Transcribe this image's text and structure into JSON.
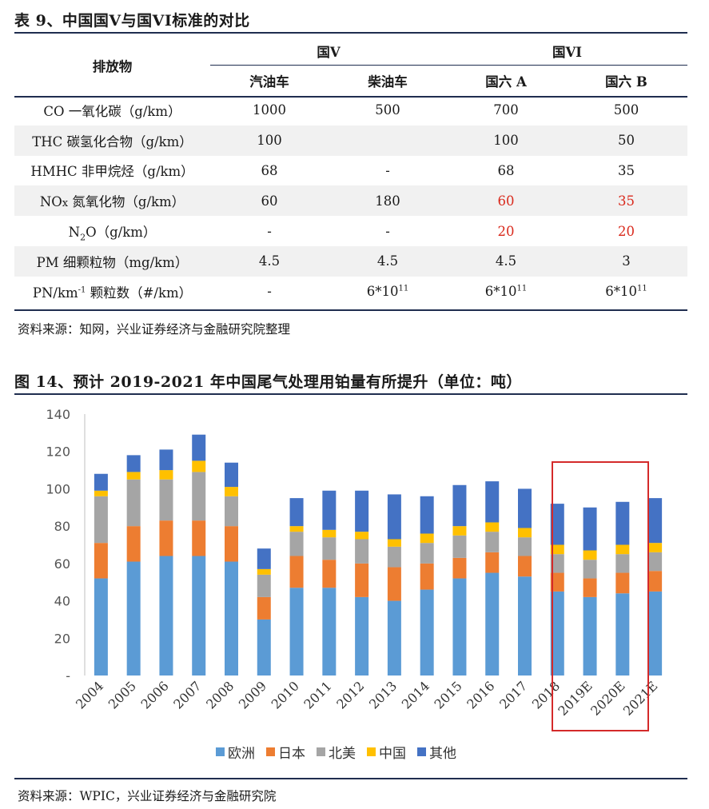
{
  "table": {
    "title": "表 9、中国国V与国VI标准的对比",
    "header_pollutant": "排放物",
    "group_5": "国V",
    "group_6": "国VI",
    "col_gas": "汽油车",
    "col_diesel": "柴油车",
    "col_6a": "国六 A",
    "col_6b": "国六 B",
    "rows": [
      {
        "label": "CO 一氧化碳（g/km）",
        "gas": "1000",
        "diesel": "500",
        "a": "700",
        "b": "500"
      },
      {
        "label": "THC 碳氢化合物（g/km）",
        "gas": "100",
        "diesel": "",
        "a": "100",
        "b": "50"
      },
      {
        "label": "HMHC 非甲烷烃（g/km）",
        "gas": "68",
        "diesel": "-",
        "a": "68",
        "b": "35"
      },
      {
        "label_pre": "NO",
        "label_x": "x",
        "label_post": " 氮氧化物（g/km）",
        "gas": "60",
        "diesel": "180",
        "a": "60",
        "b": "35"
      },
      {
        "label_pre": "N",
        "label_sub": "2",
        "label_post": "O（g/km）",
        "gas": "-",
        "diesel": "-",
        "a": "20",
        "b": "20"
      },
      {
        "label": "PM 细颗粒物（mg/km）",
        "gas": "4.5",
        "diesel": "4.5",
        "a": "4.5",
        "b": "3"
      },
      {
        "label_pre": "PN/km",
        "label_sup": "-1",
        "label_post": " 颗粒数（#/km）",
        "gas": "-",
        "diesel_base": "6*10",
        "diesel_exp": "11",
        "a_base": "6*10",
        "a_exp": "11",
        "b_base": "6*10",
        "b_exp": "11"
      }
    ],
    "source": "资料来源：知网，兴业证券经济与金融研究院整理"
  },
  "figure": {
    "title": "图 14、预计 2019-2021 年中国尾气处理用铂量有所提升（单位：吨）",
    "source": "资料来源：WPIC，兴业证券经济与金融研究院"
  },
  "colors": {
    "europe": "#5b9bd5",
    "japan": "#ed7d31",
    "north_america": "#a5a5a5",
    "china": "#ffc000",
    "other": "#4472c4",
    "highlight_box": "#d42a2a",
    "red_text": "#d9291c"
  },
  "chart_data": {
    "type": "bar",
    "stacked": true,
    "categories": [
      "2004",
      "2005",
      "2006",
      "2007",
      "2008",
      "2009",
      "2010",
      "2011",
      "2012",
      "2013",
      "2014",
      "2015",
      "2016",
      "2017",
      "2018",
      "2019E",
      "2020E",
      "2021E"
    ],
    "series": [
      {
        "name": "欧洲",
        "color": "#5b9bd5",
        "values": [
          52,
          61,
          64,
          64,
          61,
          30,
          47,
          47,
          42,
          40,
          46,
          52,
          55,
          53,
          45,
          42,
          44,
          45
        ]
      },
      {
        "name": "日本",
        "color": "#ed7d31",
        "values": [
          19,
          19,
          19,
          19,
          19,
          12,
          17,
          15,
          18,
          18,
          14,
          11,
          11,
          11,
          10,
          10,
          11,
          11
        ]
      },
      {
        "name": "北美",
        "color": "#a5a5a5",
        "values": [
          25,
          25,
          22,
          26,
          16,
          12,
          13,
          12,
          13,
          11,
          11,
          12,
          11,
          10,
          10,
          10,
          10,
          10
        ]
      },
      {
        "name": "中国",
        "color": "#ffc000",
        "values": [
          3,
          4,
          5,
          6,
          5,
          3,
          3,
          4,
          4,
          4,
          5,
          5,
          5,
          5,
          5,
          5,
          5,
          5
        ]
      },
      {
        "name": "其他",
        "color": "#4472c4",
        "values": [
          9,
          9,
          11,
          14,
          13,
          11,
          15,
          21,
          22,
          24,
          20,
          22,
          22,
          21,
          22,
          23,
          23,
          24
        ]
      }
    ],
    "ylim": [
      0,
      140
    ],
    "yticks": [
      0,
      20,
      40,
      60,
      80,
      100,
      120,
      140
    ],
    "ytick_labels": [
      "-",
      "20",
      "40",
      "60",
      "80",
      "100",
      "120",
      "140"
    ],
    "legend_position": "bottom",
    "highlighted_categories": [
      "2019E",
      "2020E",
      "2021E"
    ]
  }
}
